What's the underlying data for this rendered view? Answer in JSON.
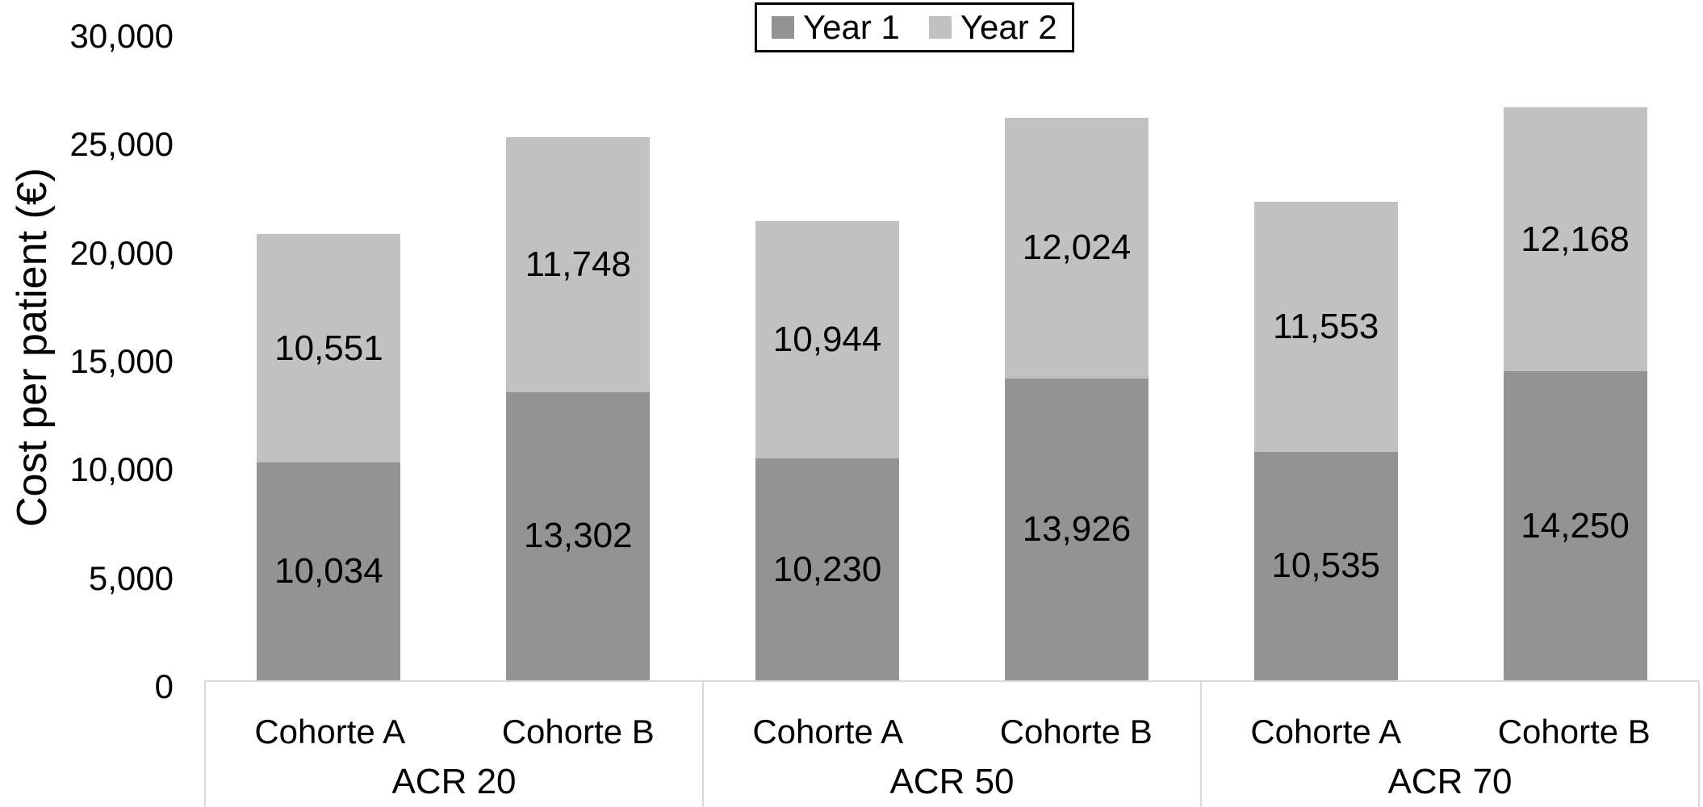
{
  "chart_data": {
    "type": "bar",
    "stacked": true,
    "title": "",
    "ylabel": "Cost per patient (€)",
    "xlabel": "",
    "ylim": [
      0,
      30000
    ],
    "ytick_step": 5000,
    "grid": false,
    "legend_position": "top-center",
    "yticks": [
      {
        "value": 0,
        "label": "0"
      },
      {
        "value": 5000,
        "label": "5,000"
      },
      {
        "value": 10000,
        "label": "10,000"
      },
      {
        "value": 15000,
        "label": "15,000"
      },
      {
        "value": 20000,
        "label": "20,000"
      },
      {
        "value": 25000,
        "label": "25,000"
      },
      {
        "value": 30000,
        "label": "30,000"
      }
    ],
    "group_labels": [
      "ACR 20",
      "ACR 50",
      "ACR 70"
    ],
    "categories": [
      "Cohorte A",
      "Cohorte B",
      "Cohorte A",
      "Cohorte B",
      "Cohorte A",
      "Cohorte B"
    ],
    "series": [
      {
        "name": "Year 1",
        "color": "#939393",
        "values": [
          10034,
          13302,
          10230,
          13926,
          10535,
          14250
        ],
        "labels": [
          "10,034",
          "13,302",
          "10,230",
          "13,926",
          "10,535",
          "14,250"
        ]
      },
      {
        "name": "Year 2",
        "color": "#C1C1C1",
        "values": [
          10551,
          11748,
          10944,
          12024,
          11553,
          12168
        ],
        "labels": [
          "10,551",
          "11,748",
          "10,944",
          "12,024",
          "11,553",
          "12,168"
        ]
      }
    ],
    "colors": {
      "axis_table_border": "#D9D9D9",
      "legend_border": "#000000",
      "label_text": "#000000",
      "background": "#FFFFFF"
    }
  }
}
